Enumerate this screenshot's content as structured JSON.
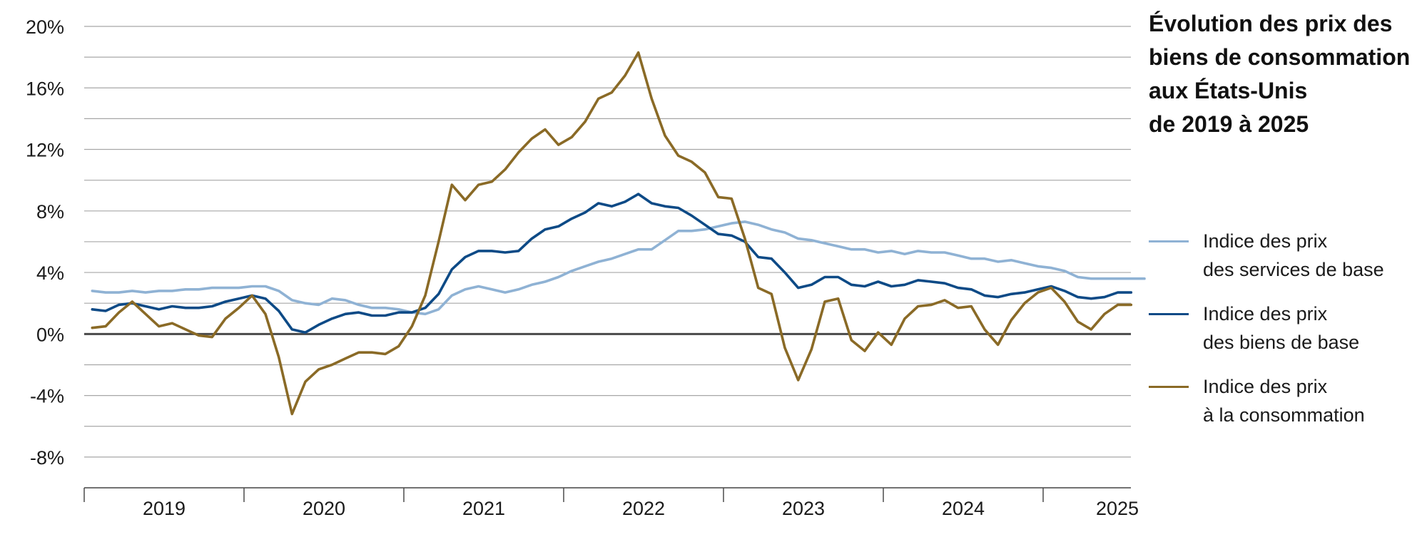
{
  "chart_data": {
    "type": "line",
    "title_lines": [
      "Évolution des prix des",
      "biens de consommation",
      "aux États-Unis",
      "de 2019 à 2025"
    ],
    "xlabel": "",
    "ylabel": "",
    "ylim": [
      -10,
      20
    ],
    "y_ticks": [
      {
        "value": 20,
        "label": "20%"
      },
      {
        "value": 16,
        "label": "16%"
      },
      {
        "value": 12,
        "label": "12%"
      },
      {
        "value": 8,
        "label": "8%"
      },
      {
        "value": 4,
        "label": "4%"
      },
      {
        "value": 0,
        "label": "0%"
      },
      {
        "value": -4,
        "label": "-4%"
      },
      {
        "value": -8,
        "label": "-8%"
      }
    ],
    "x_year_labels": [
      "2019",
      "2020",
      "2021",
      "2022",
      "2023",
      "2024",
      "2025"
    ],
    "x_start": "2019-01",
    "months_per_year": 12,
    "grid": true,
    "legend_position": "right",
    "series": [
      {
        "name_lines": [
          "Indice des prix",
          "des services de base"
        ],
        "color": "#8fb2d4",
        "values": [
          2.8,
          2.7,
          2.7,
          2.8,
          2.7,
          2.8,
          2.8,
          2.9,
          2.9,
          3.0,
          3.0,
          3.0,
          3.1,
          3.1,
          2.8,
          2.2,
          2.0,
          1.9,
          2.3,
          2.2,
          1.9,
          1.7,
          1.7,
          1.6,
          1.4,
          1.3,
          1.6,
          2.5,
          2.9,
          3.1,
          2.9,
          2.7,
          2.9,
          3.2,
          3.4,
          3.7,
          4.1,
          4.4,
          4.7,
          4.9,
          5.2,
          5.5,
          5.5,
          6.1,
          6.7,
          6.7,
          6.8,
          7.0,
          7.2,
          7.3,
          7.1,
          6.8,
          6.6,
          6.2,
          6.1,
          5.9,
          5.7,
          5.5,
          5.5,
          5.3,
          5.4,
          5.2,
          5.4,
          5.3,
          5.3,
          5.1,
          4.9,
          4.9,
          4.7,
          4.8,
          4.6,
          4.4,
          4.3,
          4.1,
          3.7,
          3.6,
          3.6,
          3.6,
          3.6,
          3.6
        ]
      },
      {
        "name_lines": [
          "Indice des prix",
          "des biens de base"
        ],
        "color": "#0d4a86",
        "values": [
          1.6,
          1.5,
          1.9,
          2.0,
          1.8,
          1.6,
          1.8,
          1.7,
          1.7,
          1.8,
          2.1,
          2.3,
          2.5,
          2.3,
          1.5,
          0.3,
          0.1,
          0.6,
          1.0,
          1.3,
          1.4,
          1.2,
          1.2,
          1.4,
          1.4,
          1.7,
          2.6,
          4.2,
          5.0,
          5.4,
          5.4,
          5.3,
          5.4,
          6.2,
          6.8,
          7.0,
          7.5,
          7.9,
          8.5,
          8.3,
          8.6,
          9.1,
          8.5,
          8.3,
          8.2,
          7.7,
          7.1,
          6.5,
          6.4,
          6.0,
          5.0,
          4.9,
          4.0,
          3.0,
          3.2,
          3.7,
          3.7,
          3.2,
          3.1,
          3.4,
          3.1,
          3.2,
          3.5,
          3.4,
          3.3,
          3.0,
          2.9,
          2.5,
          2.4,
          2.6,
          2.7,
          2.9,
          3.1,
          2.8,
          2.4,
          2.3,
          2.4,
          2.7,
          2.7
        ]
      },
      {
        "name_lines": [
          "Indice des prix",
          "à la consommation"
        ],
        "color": "#8a6a26",
        "values": [
          0.4,
          0.5,
          1.4,
          2.1,
          1.3,
          0.5,
          0.7,
          0.3,
          -0.1,
          -0.2,
          1.0,
          1.7,
          2.5,
          1.3,
          -1.5,
          -5.2,
          -3.1,
          -2.3,
          -2.0,
          -1.6,
          -1.2,
          -1.2,
          -1.3,
          -0.8,
          0.5,
          2.5,
          6.0,
          9.7,
          8.7,
          9.7,
          9.9,
          10.7,
          11.8,
          12.7,
          13.3,
          12.3,
          12.8,
          13.8,
          15.3,
          15.7,
          16.8,
          18.3,
          15.3,
          12.9,
          11.6,
          11.2,
          10.5,
          8.9,
          8.8,
          6.2,
          3.0,
          2.6,
          -0.9,
          -3.0,
          -1.0,
          2.1,
          2.3,
          -0.4,
          -1.1,
          0.1,
          -0.7,
          1.0,
          1.8,
          1.9,
          2.2,
          1.7,
          1.8,
          0.3,
          -0.7,
          0.9,
          2.0,
          2.7,
          3.0,
          2.1,
          0.8,
          0.3,
          1.3,
          1.9,
          1.9
        ]
      }
    ]
  }
}
